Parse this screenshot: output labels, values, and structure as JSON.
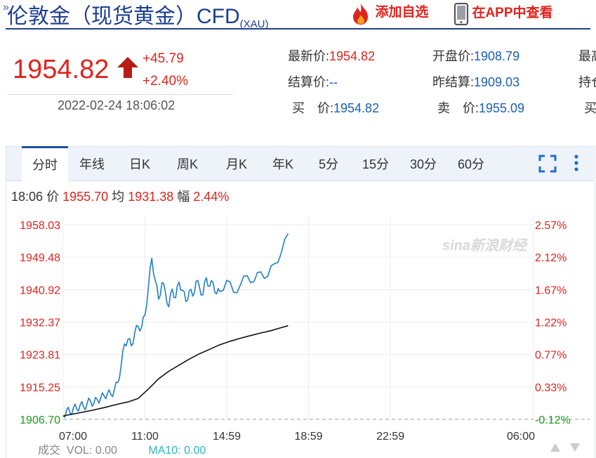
{
  "header": {
    "title": "伦敦金（现货黄金）CFD",
    "symbol": "(XAU)",
    "add_watchlist": "添加自选",
    "view_in_app": "在APP中查看"
  },
  "quote": {
    "price": "1954.82",
    "change": "+45.79",
    "change_pct": "+2.40%",
    "datetime": "2022-02-24 18:06:02",
    "fields": [
      {
        "label": "最新价:",
        "value": "1954.82"
      },
      {
        "label": "开盘价:",
        "value": "1908.79"
      },
      {
        "label": "最高",
        "value": ""
      },
      {
        "label": "结算价:",
        "value": "--"
      },
      {
        "label": "昨结算:",
        "value": "1909.03"
      },
      {
        "label": "持仓",
        "value": ""
      },
      {
        "label": "买　价:",
        "value": "1954.82"
      },
      {
        "label": "卖　价:",
        "value": "1955.09"
      },
      {
        "label": "买",
        "value": ""
      }
    ]
  },
  "tabs": [
    "分时",
    "年线",
    "日K",
    "周K",
    "月K",
    "年K",
    "5分",
    "15分",
    "30分",
    "60分"
  ],
  "active_tab": 0,
  "info": {
    "time": "18:06",
    "price_label": "价",
    "price": "1955.70",
    "avg_label": "均",
    "avg": "1931.38",
    "amp_label": "幅",
    "amp": "2.44%"
  },
  "watermark": "sina新浪财经",
  "footer": {
    "vol_label": "成交",
    "vol": "VOL: 0.00",
    "ma10": "MA10: 0.00"
  },
  "colors": {
    "up": "#e0231c",
    "down": "#1a9c1a",
    "price_line": "#1f7ec4",
    "avg_line": "#111111",
    "brand": "#1a3d8f"
  },
  "chart_data": {
    "type": "line",
    "title": "",
    "x_ticks": [
      "07:00",
      "11:00",
      "14:59",
      "18:59",
      "22:59",
      "06:00"
    ],
    "y_ticks_left": [
      "1958.03",
      "1949.48",
      "1940.92",
      "1932.37",
      "1923.81",
      "1915.25",
      "1906.70"
    ],
    "y_ticks_right": [
      "2.57%",
      "2.12%",
      "1.67%",
      "1.22%",
      "0.77%",
      "0.33%",
      "-0.12%"
    ],
    "ylim": [
      1906.7,
      1958.03
    ],
    "reference_value": 1909.03,
    "x_unit": "minutes since 07:00",
    "series": [
      {
        "name": "价",
        "x": [
          0,
          10,
          20,
          30,
          40,
          50,
          60,
          70,
          80,
          90,
          100,
          110,
          120,
          130,
          140,
          150,
          160,
          170,
          180,
          190,
          200,
          210,
          220,
          230,
          240,
          250,
          260,
          270,
          280,
          290,
          300,
          310,
          320,
          330,
          340,
          350,
          360,
          370,
          380,
          390,
          400,
          410,
          420,
          430,
          440,
          450,
          460,
          480,
          500,
          520,
          540,
          560,
          580,
          600,
          620,
          640,
          660
        ],
        "y": [
          1907.6,
          1909.2,
          1908.4,
          1909.8,
          1909.4,
          1910.6,
          1909.9,
          1910.8,
          1911.6,
          1910.9,
          1911.9,
          1912.3,
          1912.9,
          1913.6,
          1913.2,
          1914.4,
          1916.4,
          1920.8,
          1926.6,
          1927.8,
          1926.1,
          1929.6,
          1931.2,
          1931.0,
          1934.2,
          1941.6,
          1949.2,
          1943.4,
          1938.4,
          1942.8,
          1940.1,
          1936.4,
          1941.1,
          1938.8,
          1942.9,
          1940.8,
          1937.8,
          1940.6,
          1939.2,
          1943.1,
          1941.5,
          1939.6,
          1944.1,
          1941.8,
          1942.7,
          1939.8,
          1940.4,
          1943.4,
          1940.2,
          1942.2,
          1944.6,
          1943.1,
          1945.6,
          1944.4,
          1947.8,
          1950.6,
          1955.7
        ]
      },
      {
        "name": "均",
        "x": [
          0,
          40,
          80,
          120,
          160,
          190,
          220,
          250,
          280,
          310,
          340,
          370,
          400,
          430,
          460,
          490,
          520,
          550,
          580,
          610,
          640,
          660
        ],
        "y": [
          1907.6,
          1908.3,
          1909.0,
          1909.8,
          1910.7,
          1911.3,
          1912.2,
          1914.7,
          1917.4,
          1919.4,
          1921.0,
          1922.6,
          1924.0,
          1925.2,
          1926.4,
          1927.3,
          1928.1,
          1928.8,
          1929.5,
          1930.1,
          1930.9,
          1931.4
        ]
      }
    ]
  }
}
